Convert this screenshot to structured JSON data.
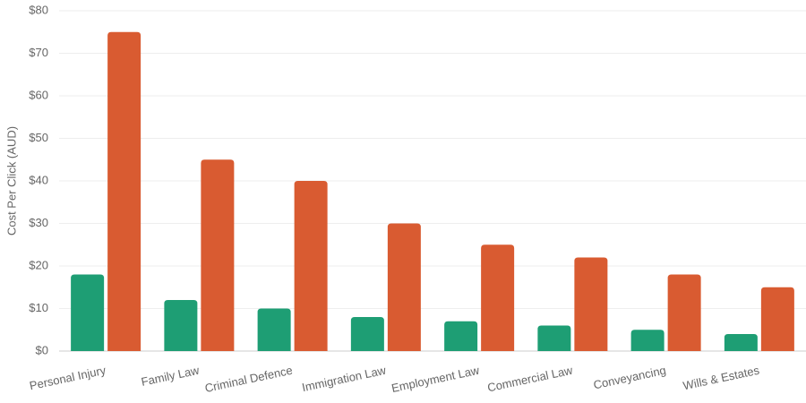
{
  "chart_data": {
    "type": "bar",
    "y_label": "Cost Per Click (AUD)",
    "categories": [
      "Personal Injury",
      "Family Law",
      "Criminal Defence",
      "Immigration Law",
      "Employment Law",
      "Commercial Law",
      "Conveyancing",
      "Wills & Estates"
    ],
    "series": [
      {
        "color": "#1e9e74",
        "values": [
          18,
          12,
          10,
          8,
          7,
          6,
          5,
          4
        ]
      },
      {
        "color": "#d95b31",
        "values": [
          75,
          45,
          40,
          30,
          25,
          22,
          18,
          15
        ]
      }
    ],
    "ylim": [
      0,
      80
    ],
    "yticks": [
      {
        "value": 0,
        "label": "$0"
      },
      {
        "value": 10,
        "label": "$10"
      },
      {
        "value": 20,
        "label": "$20"
      },
      {
        "value": 30,
        "label": "$30"
      },
      {
        "value": 40,
        "label": "$40"
      },
      {
        "value": 50,
        "label": "$50"
      },
      {
        "value": 60,
        "label": "$60"
      },
      {
        "value": 70,
        "label": "$70"
      },
      {
        "value": 80,
        "label": "$80"
      }
    ],
    "grid": true
  }
}
